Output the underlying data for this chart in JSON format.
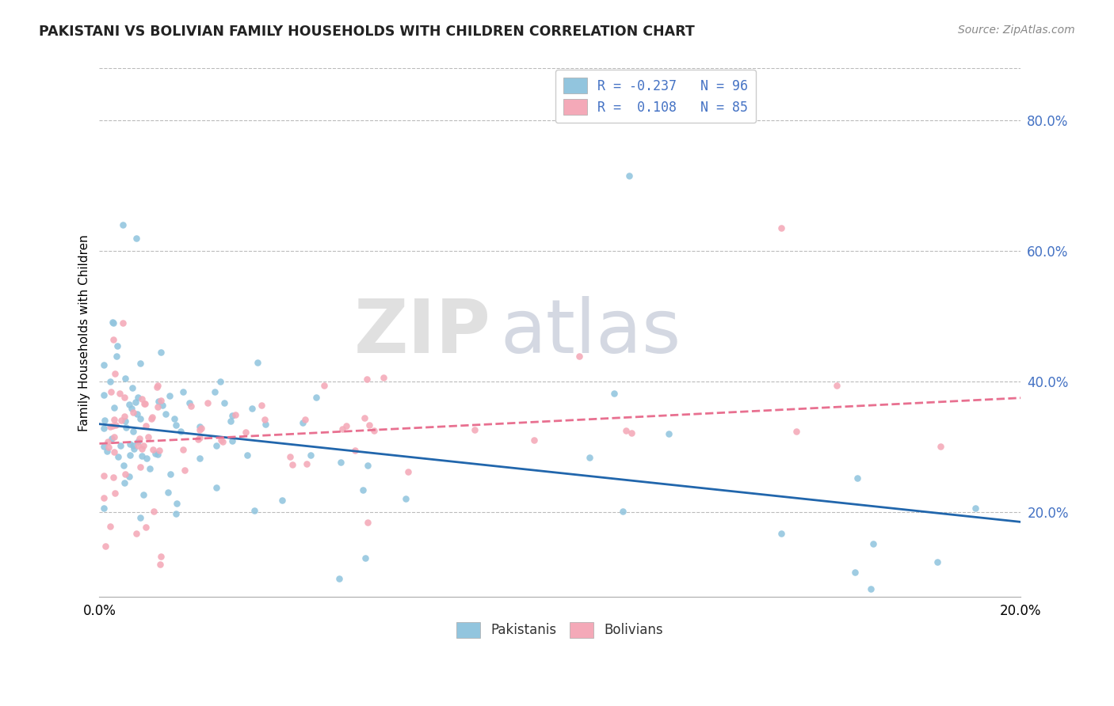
{
  "title": "PAKISTANI VS BOLIVIAN FAMILY HOUSEHOLDS WITH CHILDREN CORRELATION CHART",
  "source": "Source: ZipAtlas.com",
  "ylabel": "Family Households with Children",
  "xlim": [
    0.0,
    0.2
  ],
  "ylim": [
    0.07,
    0.88
  ],
  "pakistani_R": -0.237,
  "pakistani_N": 96,
  "bolivian_R": 0.108,
  "bolivian_N": 85,
  "pakistani_color": "#92C5DE",
  "bolivian_color": "#F4A9B8",
  "pakistani_line_color": "#2166AC",
  "bolivian_line_color": "#E87090",
  "background_color": "#FFFFFF",
  "grid_color": "#BBBBBB",
  "yticks": [
    0.2,
    0.4,
    0.6,
    0.8
  ],
  "ytick_labels": [
    "20.0%",
    "40.0%",
    "60.0%",
    "80.0%"
  ],
  "xtick_labels": [
    "0.0%",
    "20.0%"
  ],
  "pak_line_y0": 0.335,
  "pak_line_y1": 0.185,
  "bol_line_y0": 0.305,
  "bol_line_y1": 0.375
}
